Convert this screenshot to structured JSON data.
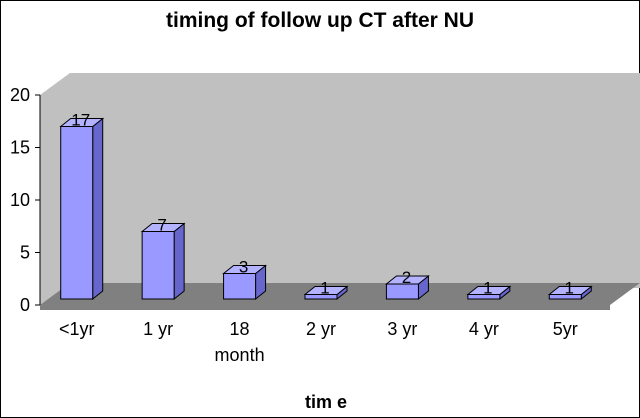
{
  "chart_data": {
    "type": "bar",
    "title": "timing of follow up CT after NU",
    "xlabel": "tim e",
    "ylabel": "",
    "categories": [
      "<1yr",
      "1 yr",
      "18 month",
      "2 yr",
      "3 yr",
      "4 yr",
      "5yr"
    ],
    "values": [
      17,
      7,
      3,
      1,
      2,
      1,
      1
    ],
    "ylim": [
      0,
      20
    ],
    "yticks": [
      0,
      5,
      10,
      15,
      20
    ],
    "grid": false,
    "legend": "none",
    "colors": {
      "bar_front": "#9999ff",
      "bar_side": "#6666cc",
      "bar_top": "#b3b3ff",
      "back_wall": "#c0c0c0",
      "floor": "#808080"
    }
  }
}
